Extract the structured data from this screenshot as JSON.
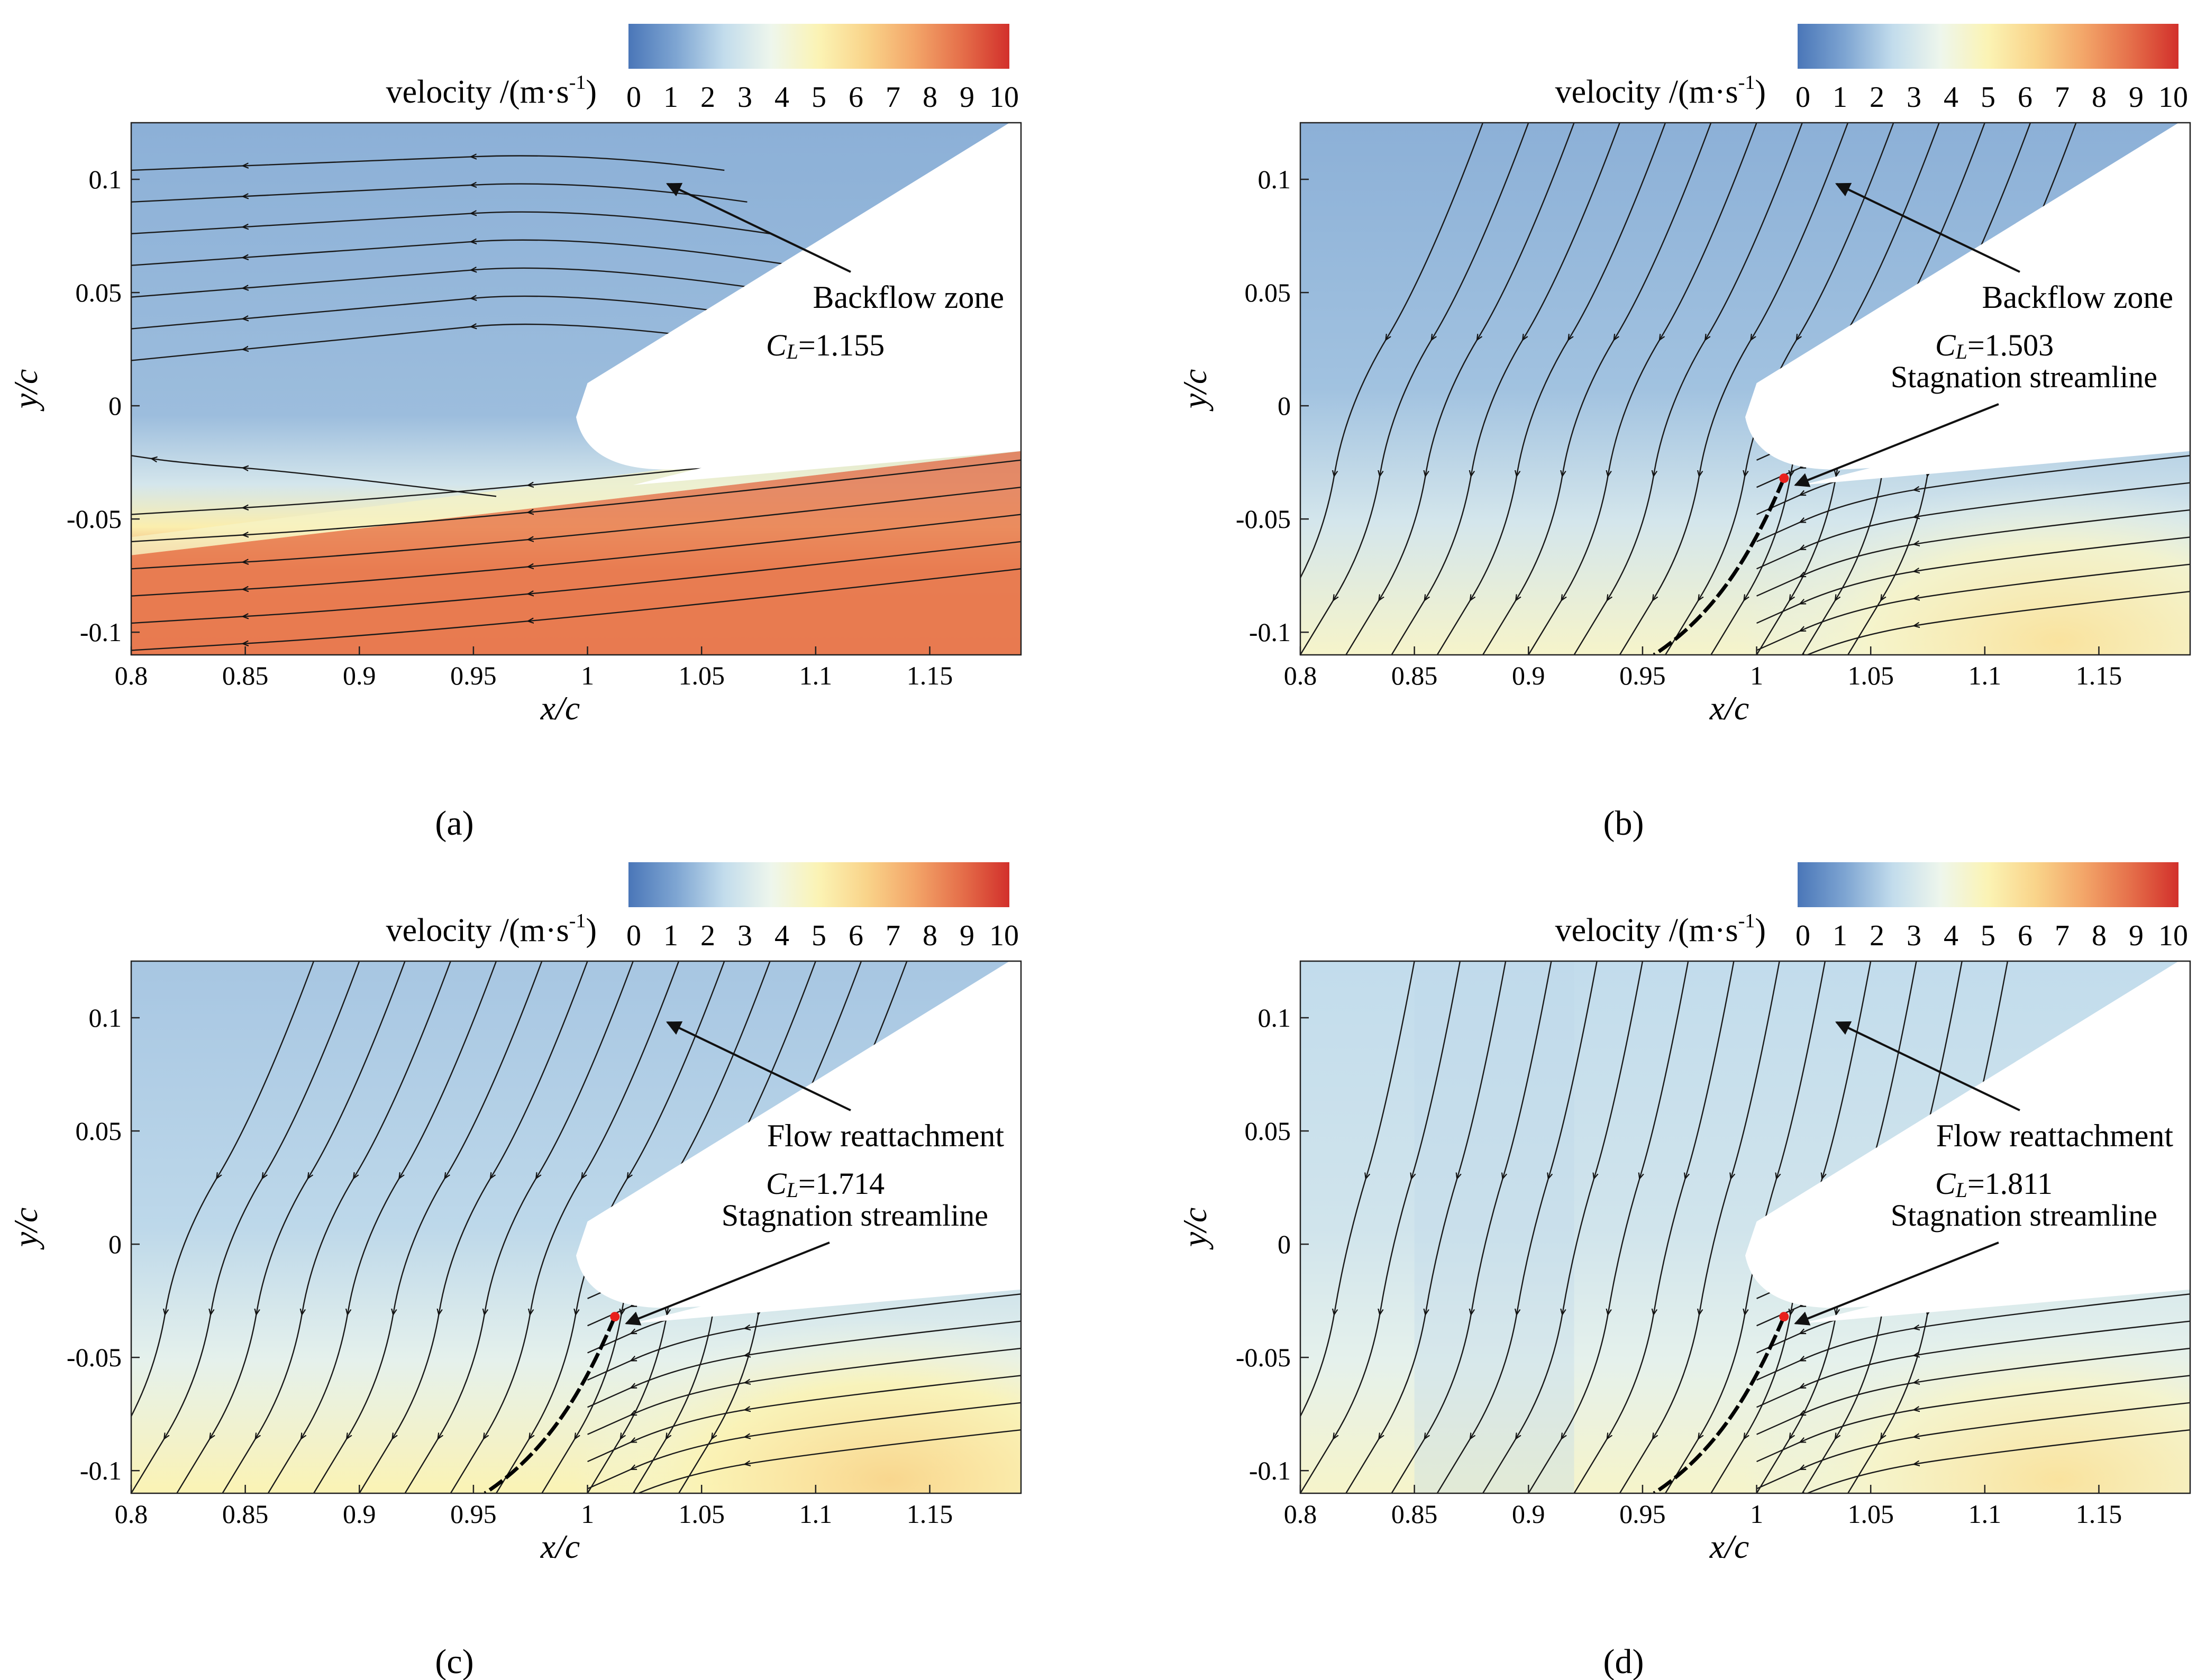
{
  "chart_data": [
    {
      "type": "heatmap",
      "panel_label": "(a)",
      "xlabel": "x/c",
      "ylabel": "y/c",
      "xlim": [
        0.8,
        1.19
      ],
      "ylim": [
        -0.11,
        0.125
      ],
      "x_ticks": [
        "0.8",
        "0.85",
        "0.9",
        "0.95",
        "1",
        "1.05",
        "1.1",
        "1.15"
      ],
      "y_ticks": [
        "-0.1",
        "-0.05",
        "0",
        "0.05",
        "0.1"
      ],
      "colorbar": {
        "title": "velocity /(m·s",
        "superscript": "-1",
        "title_end": ")",
        "range": [
          0,
          10
        ],
        "ticks": [
          "0",
          "1",
          "2",
          "3",
          "4",
          "5",
          "6",
          "7",
          "8",
          "9",
          "10"
        ]
      },
      "annotations": [
        {
          "text": "Backflow zone",
          "arrow_to": {
            "x": 1.035,
            "y": 0.098
          }
        }
      ],
      "lift_label": "C",
      "lift_subscript": "L",
      "lift_value": "=1.155",
      "stagnation_label": "",
      "stagnation_point": null,
      "velocity_field": {
        "upper_flow": 1.5,
        "lower_flow": 8.5,
        "shear_layer": "sharp"
      }
    },
    {
      "type": "heatmap",
      "panel_label": "(b)",
      "xlabel": "x/c",
      "ylabel": "y/c",
      "xlim": [
        0.8,
        1.19
      ],
      "ylim": [
        -0.11,
        0.125
      ],
      "x_ticks": [
        "0.8",
        "0.85",
        "0.9",
        "0.95",
        "1",
        "1.05",
        "1.1",
        "1.15"
      ],
      "y_ticks": [
        "-0.1",
        "-0.05",
        "0",
        "0.05",
        "0.1"
      ],
      "colorbar": {
        "title": "velocity /(m·s",
        "superscript": "-1",
        "title_end": ")",
        "range": [
          0,
          10
        ],
        "ticks": [
          "0",
          "1",
          "2",
          "3",
          "4",
          "5",
          "6",
          "7",
          "8",
          "9",
          "10"
        ]
      },
      "annotations": [
        {
          "text": "Backflow zone",
          "arrow_to": {
            "x": 1.035,
            "y": 0.098
          }
        }
      ],
      "lift_label": "C",
      "lift_subscript": "L",
      "lift_value": "=1.503",
      "stagnation_label": "Stagnation streamline",
      "stagnation_point": {
        "x": 1.012,
        "y": -0.032
      },
      "velocity_field": {
        "upper_flow": 1.5,
        "lower_flow": 4.5,
        "shear_layer": "curved"
      }
    },
    {
      "type": "heatmap",
      "panel_label": "(c)",
      "xlabel": "x/c",
      "ylabel": "y/c",
      "xlim": [
        0.8,
        1.19
      ],
      "ylim": [
        -0.11,
        0.125
      ],
      "x_ticks": [
        "0.8",
        "0.85",
        "0.9",
        "0.95",
        "1",
        "1.05",
        "1.1",
        "1.15"
      ],
      "y_ticks": [
        "-0.1",
        "-0.05",
        "0",
        "0.05",
        "0.1"
      ],
      "colorbar": {
        "title": "velocity /(m·s",
        "superscript": "-1",
        "title_end": ")",
        "range": [
          0,
          10
        ],
        "ticks": [
          "0",
          "1",
          "2",
          "3",
          "4",
          "5",
          "6",
          "7",
          "8",
          "9",
          "10"
        ]
      },
      "annotations": [
        {
          "text": "Flow reattachment",
          "arrow_to": {
            "x": 1.035,
            "y": 0.098
          }
        }
      ],
      "lift_label": "C",
      "lift_subscript": "L",
      "lift_value": "=1.714",
      "stagnation_label": "Stagnation streamline",
      "stagnation_point": {
        "x": 1.012,
        "y": -0.032
      },
      "velocity_field": {
        "upper_flow": 2.0,
        "lower_flow": 5.0,
        "shear_layer": "curved"
      }
    },
    {
      "type": "heatmap",
      "panel_label": "(d)",
      "xlabel": "x/c",
      "ylabel": "y/c",
      "xlim": [
        0.8,
        1.19
      ],
      "ylim": [
        -0.11,
        0.125
      ],
      "x_ticks": [
        "0.8",
        "0.85",
        "0.9",
        "0.95",
        "1",
        "1.05",
        "1.1",
        "1.15"
      ],
      "y_ticks": [
        "-0.1",
        "-0.05",
        "0",
        "0.05",
        "0.1"
      ],
      "colorbar": {
        "title": "velocity /(m·s",
        "superscript": "-1",
        "title_end": ")",
        "range": [
          0,
          10
        ],
        "ticks": [
          "0",
          "1",
          "2",
          "3",
          "4",
          "5",
          "6",
          "7",
          "8",
          "9",
          "10"
        ]
      },
      "annotations": [
        {
          "text": "Flow reattachment",
          "arrow_to": {
            "x": 1.035,
            "y": 0.098
          }
        }
      ],
      "lift_label": "C",
      "lift_subscript": "L",
      "lift_value": "=1.811",
      "stagnation_label": "Stagnation streamline",
      "stagnation_point": {
        "x": 1.012,
        "y": -0.032
      },
      "velocity_field": {
        "upper_flow": 2.5,
        "lower_flow": 4.5,
        "shear_layer": "vertical"
      }
    }
  ],
  "colormap": [
    "#4a76b8",
    "#7ea5d2",
    "#c2dcec",
    "#eef6ec",
    "#fbf3b4",
    "#f9d48a",
    "#f3a669",
    "#e56f4a",
    "#d2302b"
  ]
}
